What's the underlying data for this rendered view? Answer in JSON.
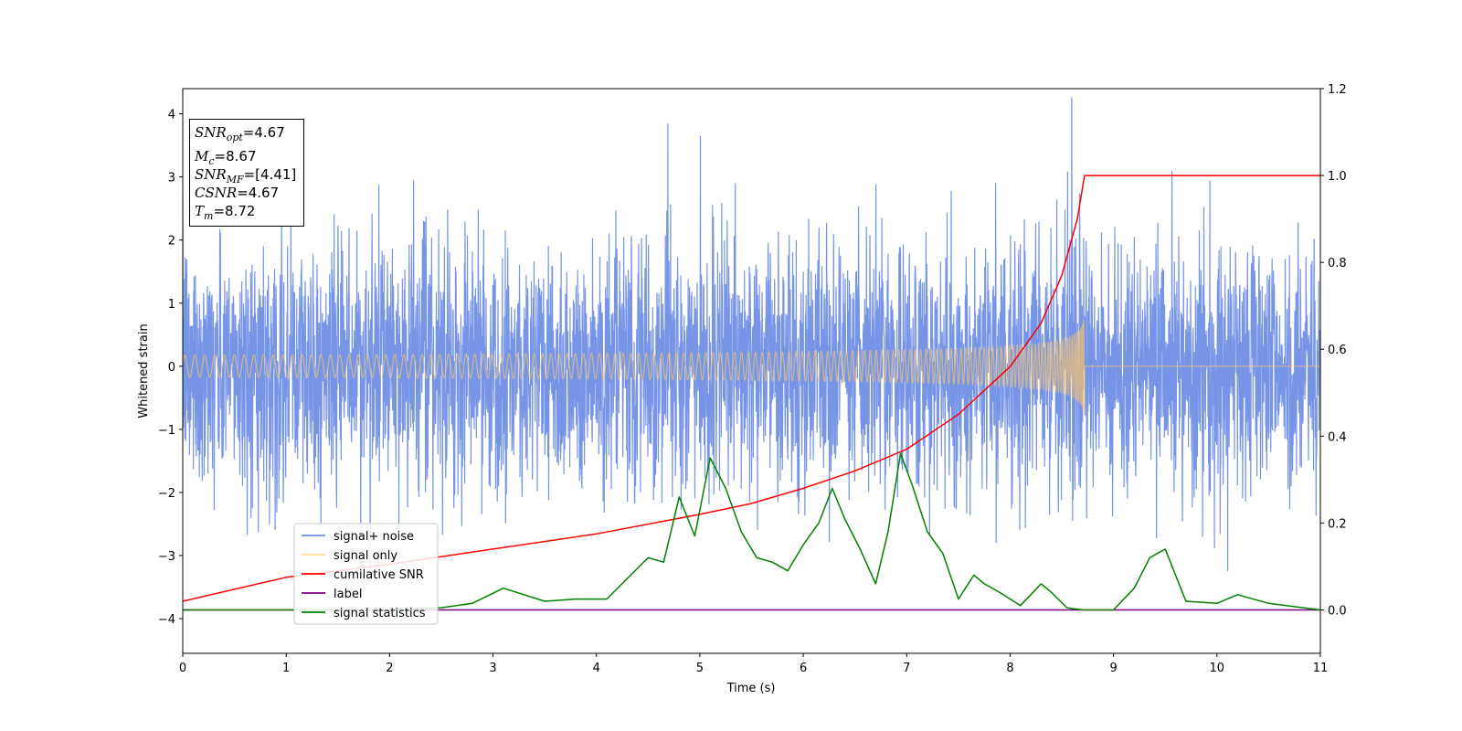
{
  "chart_data": {
    "type": "line",
    "xlabel": "Time (s)",
    "ylabel": "Whitened strain",
    "xlim": [
      0,
      11
    ],
    "ylim": [
      -4.55,
      4.4
    ],
    "y2lim": [
      -0.1,
      1.2
    ],
    "xticks": [
      "0",
      "1",
      "2",
      "3",
      "4",
      "5",
      "6",
      "7",
      "8",
      "9",
      "10",
      "11"
    ],
    "yticks": [
      "4",
      "3",
      "2",
      "1",
      "0",
      "−1",
      "−2",
      "−3",
      "−4"
    ],
    "y2ticks": [
      "1.2",
      "1.0",
      "0.8",
      "0.6",
      "0.4",
      "0.2",
      "0.0"
    ],
    "grid": false,
    "legend_position": "lower-left",
    "series": [
      {
        "name": "signal+ noise",
        "color": "#6f8fe6",
        "axis": "left",
        "noise_std": 0.95,
        "t_end": 11
      },
      {
        "name": "signal only",
        "color": "#ffc766",
        "axis": "left",
        "merger_time": 8.72,
        "peak_amplitude": 0.8
      },
      {
        "name": "cumilative SNR",
        "color": "#ff0000",
        "axis": "right",
        "x": [
          0,
          1,
          2,
          3,
          4,
          5,
          5.5,
          6,
          6.5,
          7,
          7.5,
          8,
          8.3,
          8.5,
          8.65,
          8.72,
          8.73,
          11
        ],
        "y": [
          0.02,
          0.075,
          0.105,
          0.14,
          0.175,
          0.22,
          0.245,
          0.28,
          0.32,
          0.37,
          0.45,
          0.56,
          0.66,
          0.77,
          0.9,
          1.0,
          1.0,
          1.0
        ]
      },
      {
        "name": "label",
        "color": "#800080",
        "axis": "right",
        "x": [
          0,
          11
        ],
        "y": [
          0,
          0
        ]
      },
      {
        "name": "signal statistics",
        "color": "#008000",
        "axis": "right",
        "x": [
          0,
          1,
          2,
          2.5,
          2.8,
          3.1,
          3.5,
          3.8,
          4.1,
          4.5,
          4.65,
          4.8,
          4.95,
          5.1,
          5.25,
          5.4,
          5.55,
          5.7,
          5.85,
          6.0,
          6.15,
          6.28,
          6.4,
          6.55,
          6.7,
          6.82,
          6.94,
          7.05,
          7.2,
          7.35,
          7.5,
          7.65,
          7.75,
          7.9,
          8.1,
          8.3,
          8.4,
          8.55,
          8.7,
          9.0,
          9.2,
          9.35,
          9.5,
          9.7,
          10.0,
          10.2,
          10.5,
          11
        ],
        "y": [
          0.0,
          0.0,
          0.0,
          0.005,
          0.015,
          0.05,
          0.02,
          0.025,
          0.025,
          0.12,
          0.11,
          0.26,
          0.17,
          0.35,
          0.28,
          0.18,
          0.12,
          0.11,
          0.09,
          0.15,
          0.2,
          0.28,
          0.21,
          0.14,
          0.06,
          0.18,
          0.36,
          0.29,
          0.18,
          0.13,
          0.025,
          0.08,
          0.06,
          0.04,
          0.01,
          0.06,
          0.04,
          0.005,
          0.0,
          0.0,
          0.05,
          0.12,
          0.14,
          0.02,
          0.015,
          0.035,
          0.015,
          0.0
        ]
      }
    ]
  },
  "info_box": {
    "snr_opt": "=4.67",
    "mc": "=8.67",
    "snr_mf": "=[4.41]",
    "csnr": "=4.67",
    "tm": "=8.72"
  }
}
